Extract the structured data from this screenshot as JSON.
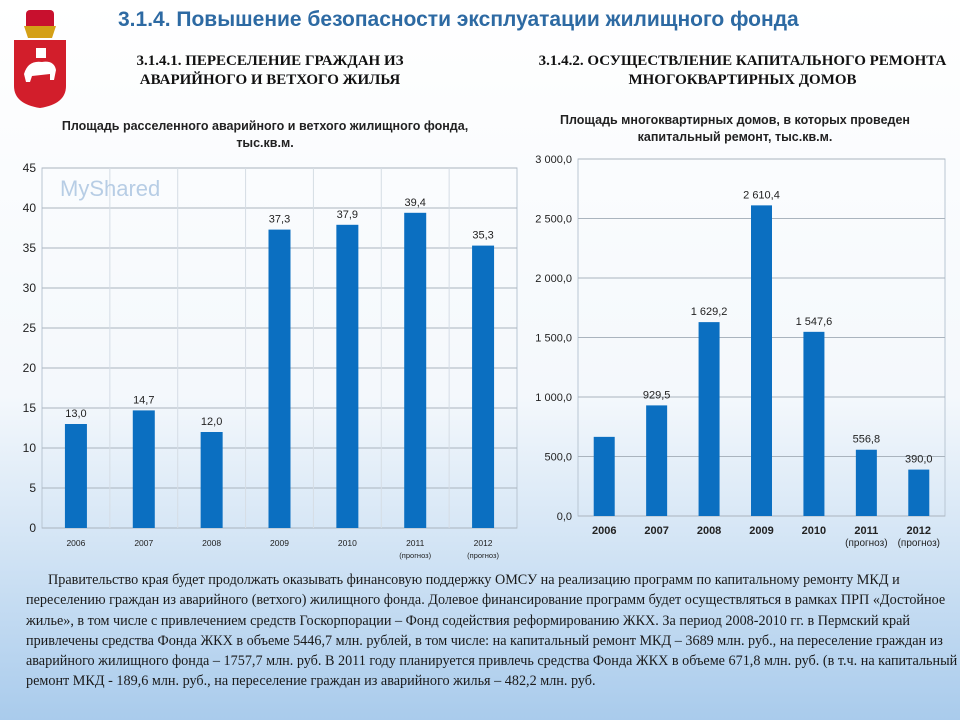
{
  "header": {
    "title": "3.1.4. Повышение безопасности эксплуатации жилищного фонда"
  },
  "left": {
    "subtitle": "3.1.4.1. ПЕРЕСЕЛЕНИЕ ГРАЖДАН ИЗ АВАРИЙНОГО И ВЕТХОГО ЖИЛЬЯ"
  },
  "right": {
    "subtitle": "3.1.4.2. ОСУЩЕСТВЛЕНИЕ КАПИТАЛЬНОГО РЕМОНТА МНОГОКВАРТИРНЫХ ДОМОВ"
  },
  "chart_data": [
    {
      "type": "bar",
      "title": "Площадь расселенного аварийного и ветхого жилищного фонда, тыс.кв.м.",
      "categories": [
        "2006",
        "2007",
        "2008",
        "2009",
        "2010",
        "2011\n(прогноз)",
        "2012\n(прогноз)"
      ],
      "values": [
        13.0,
        14.7,
        12.0,
        37.3,
        37.9,
        39.4,
        35.3
      ],
      "labels": [
        "13,0",
        "14,7",
        "12,0",
        "37,3",
        "37,9",
        "39,4",
        "35,3"
      ],
      "yticks": [
        "0",
        "5",
        "10",
        "15",
        "20",
        "25",
        "30",
        "35",
        "40",
        "45"
      ],
      "ylim": [
        0,
        45
      ],
      "grid": true,
      "color": "#0b6fc1"
    },
    {
      "type": "bar",
      "title": "Площадь многоквартирных домов, в которых проведен капитальный ремонт, тыс.кв.м.",
      "categories": [
        "2006",
        "2007",
        "2008",
        "2009",
        "2010",
        "2011\n(прогноз)",
        "2012\n(прогноз)"
      ],
      "values": [
        665,
        929.5,
        1629.2,
        2610.4,
        1547.6,
        556.8,
        390.0
      ],
      "labels": [
        "",
        "929,5",
        "1 629,2",
        "2 610,4",
        "1 547,6",
        "556,8",
        "390,0"
      ],
      "yticks": [
        "0,0",
        "500,0",
        "1 000,0",
        "1 500,0",
        "2 000,0",
        "2 500,0",
        "3 000,0"
      ],
      "ylim": [
        0,
        3000
      ],
      "grid": true,
      "color": "#0b6fc1"
    }
  ],
  "paragraph": "Правительство края будет продолжать оказывать финансовую поддержку ОМСУ на  реализацию программ по капитальному ремонту МКД и переселению граждан из аварийного (ветхого) жилищного фонда. Долевое финансирование программ будет осуществляться в рамках ПРП «Достойное жилье», в том числе с привлечением средств Госкорпорации – Фонд содействия реформированию ЖКХ.   За период 2008-2010 гг. в Пермский край привлечены средства Фонда ЖКХ в объеме 5446,7 млн. рублей, в том числе: на капитальный ремонт МКД – 3689 млн. руб., на переселение граждан из аварийного жилищного фонда – 1757,7 млн. руб. В 2011 году планируется привлечь средства Фонда ЖКХ  в объеме 671,8 млн. руб. (в т.ч. на капитальный ремонт МКД -  189,6 млн. руб., на переселение граждан из аварийного жилья – 482,2 млн. руб.",
  "watermark": "MyShared"
}
